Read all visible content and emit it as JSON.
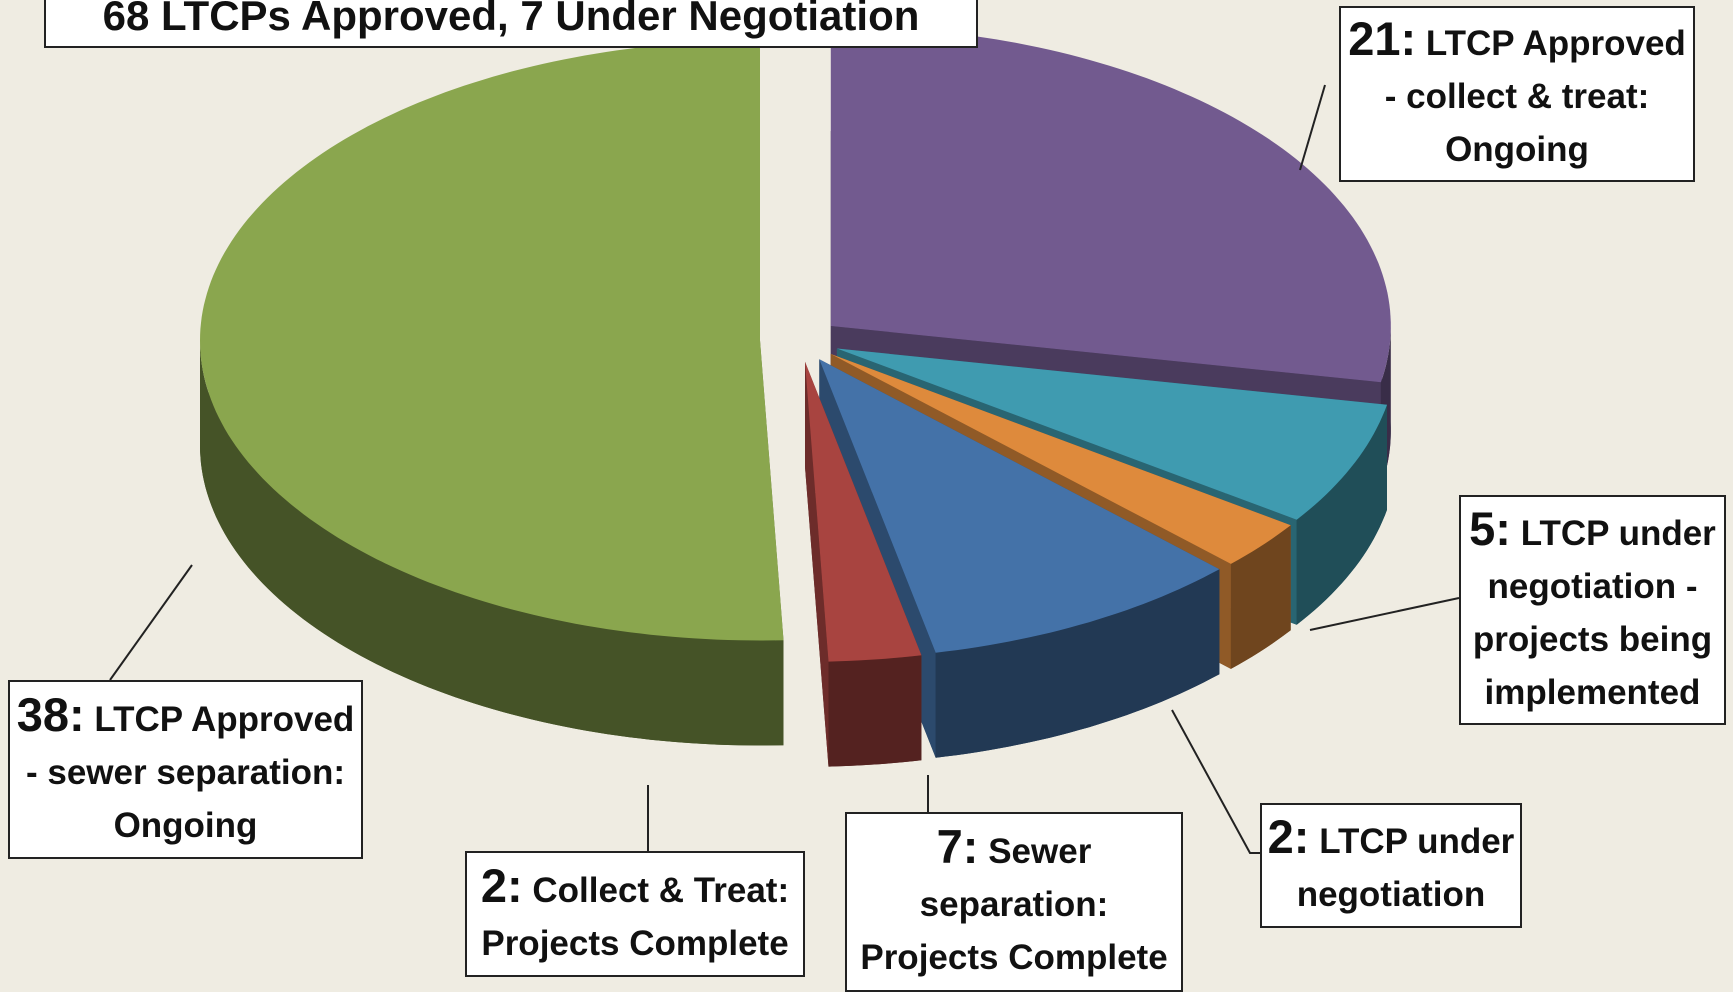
{
  "chart_data": {
    "type": "pie",
    "title": "68 LTCPs Approved, 7 Under Negotiation",
    "categories": [
      "LTCP Approved - collect & treat: Ongoing",
      "LTCP under negotiation - projects being implemented",
      "LTCP under negotiation",
      "Sewer separation: Projects Complete",
      "Collect & Treat: Projects Complete",
      "LTCP Approved - sewer separation: Ongoing"
    ],
    "values": [
      21,
      5,
      2,
      7,
      2,
      38
    ],
    "value_labels": [
      "21:",
      "5:",
      "2:",
      "7:",
      "2:",
      "38:"
    ],
    "colors": [
      "#725a8f",
      "#3f9bb0",
      "#de8a3c",
      "#4472a8",
      "#a84440",
      "#8aa64e"
    ]
  }
}
